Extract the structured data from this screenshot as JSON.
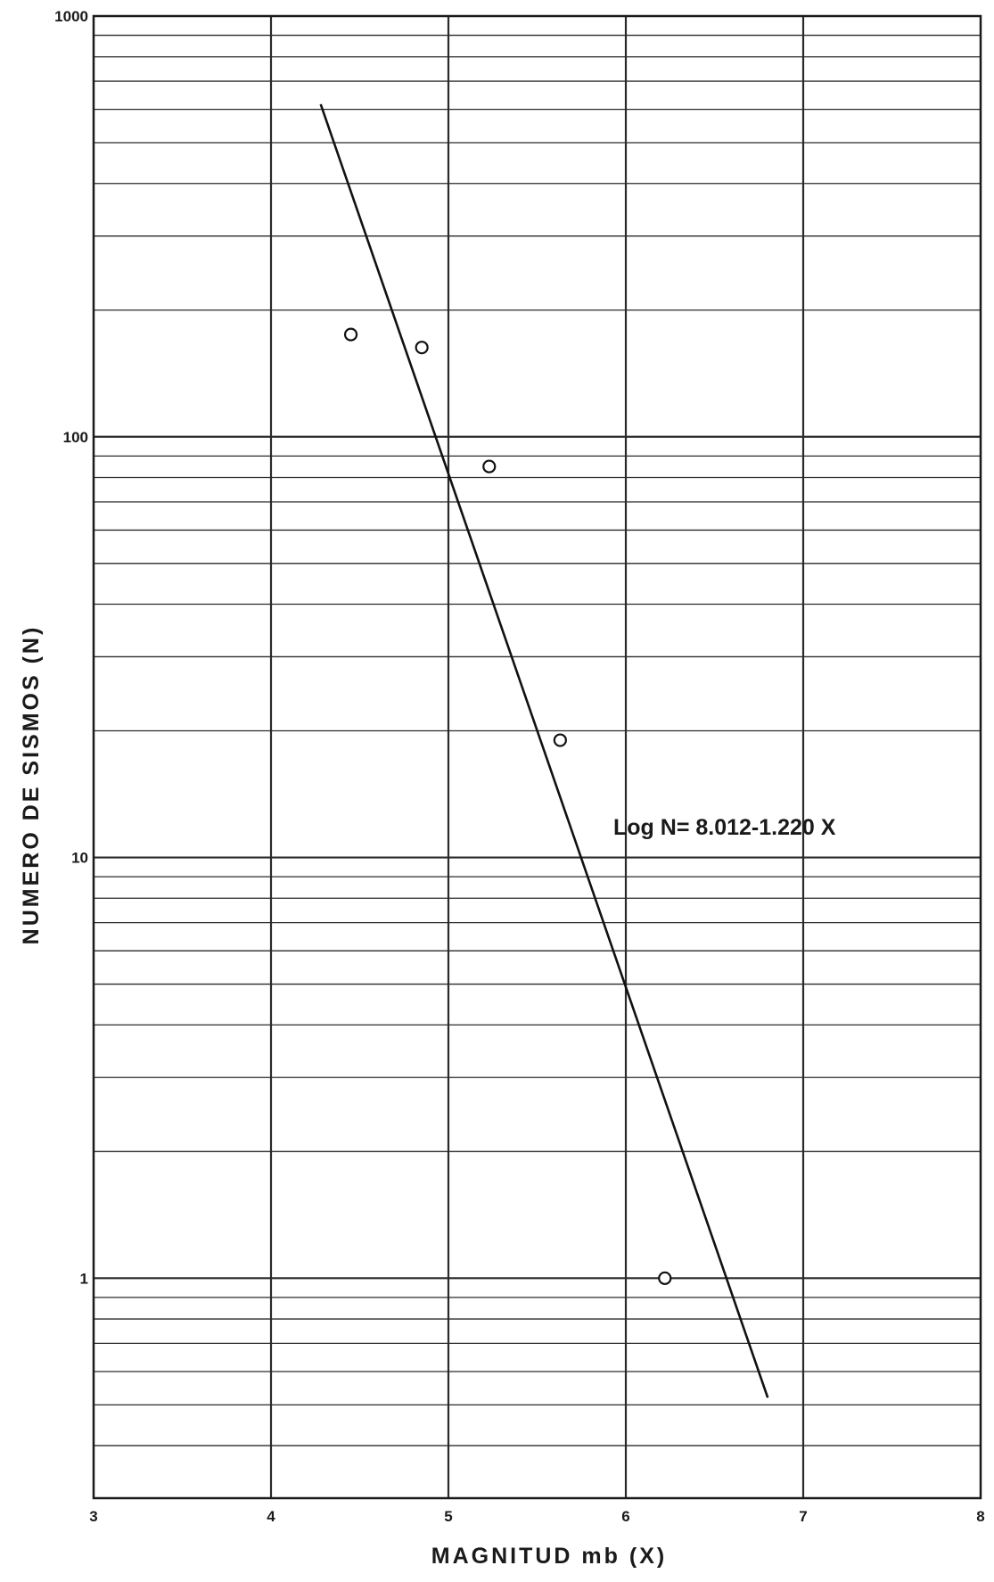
{
  "chart_data": {
    "type": "scatter",
    "title": "",
    "xlabel": "MAGNITUD mb (X)",
    "ylabel": "NUMERO DE SISMOS (N)",
    "xlim": [
      3,
      8
    ],
    "ylim": [
      0.3,
      1000
    ],
    "yscale": "log",
    "grid": true,
    "x_ticks": [
      "3",
      "4",
      "5",
      "6",
      "7",
      "8"
    ],
    "y_ticks": [
      "1",
      "10",
      "100",
      "1000"
    ],
    "points": [
      {
        "x": 4.45,
        "y": 175
      },
      {
        "x": 4.85,
        "y": 163
      },
      {
        "x": 5.23,
        "y": 85
      },
      {
        "x": 5.63,
        "y": 19
      },
      {
        "x": 6.22,
        "y": 1
      }
    ],
    "fit": {
      "equation": "Log N= 8.012-1.220 X",
      "intercept": 8.012,
      "slope": -1.22,
      "x_range": [
        4.28,
        6.8
      ]
    }
  }
}
